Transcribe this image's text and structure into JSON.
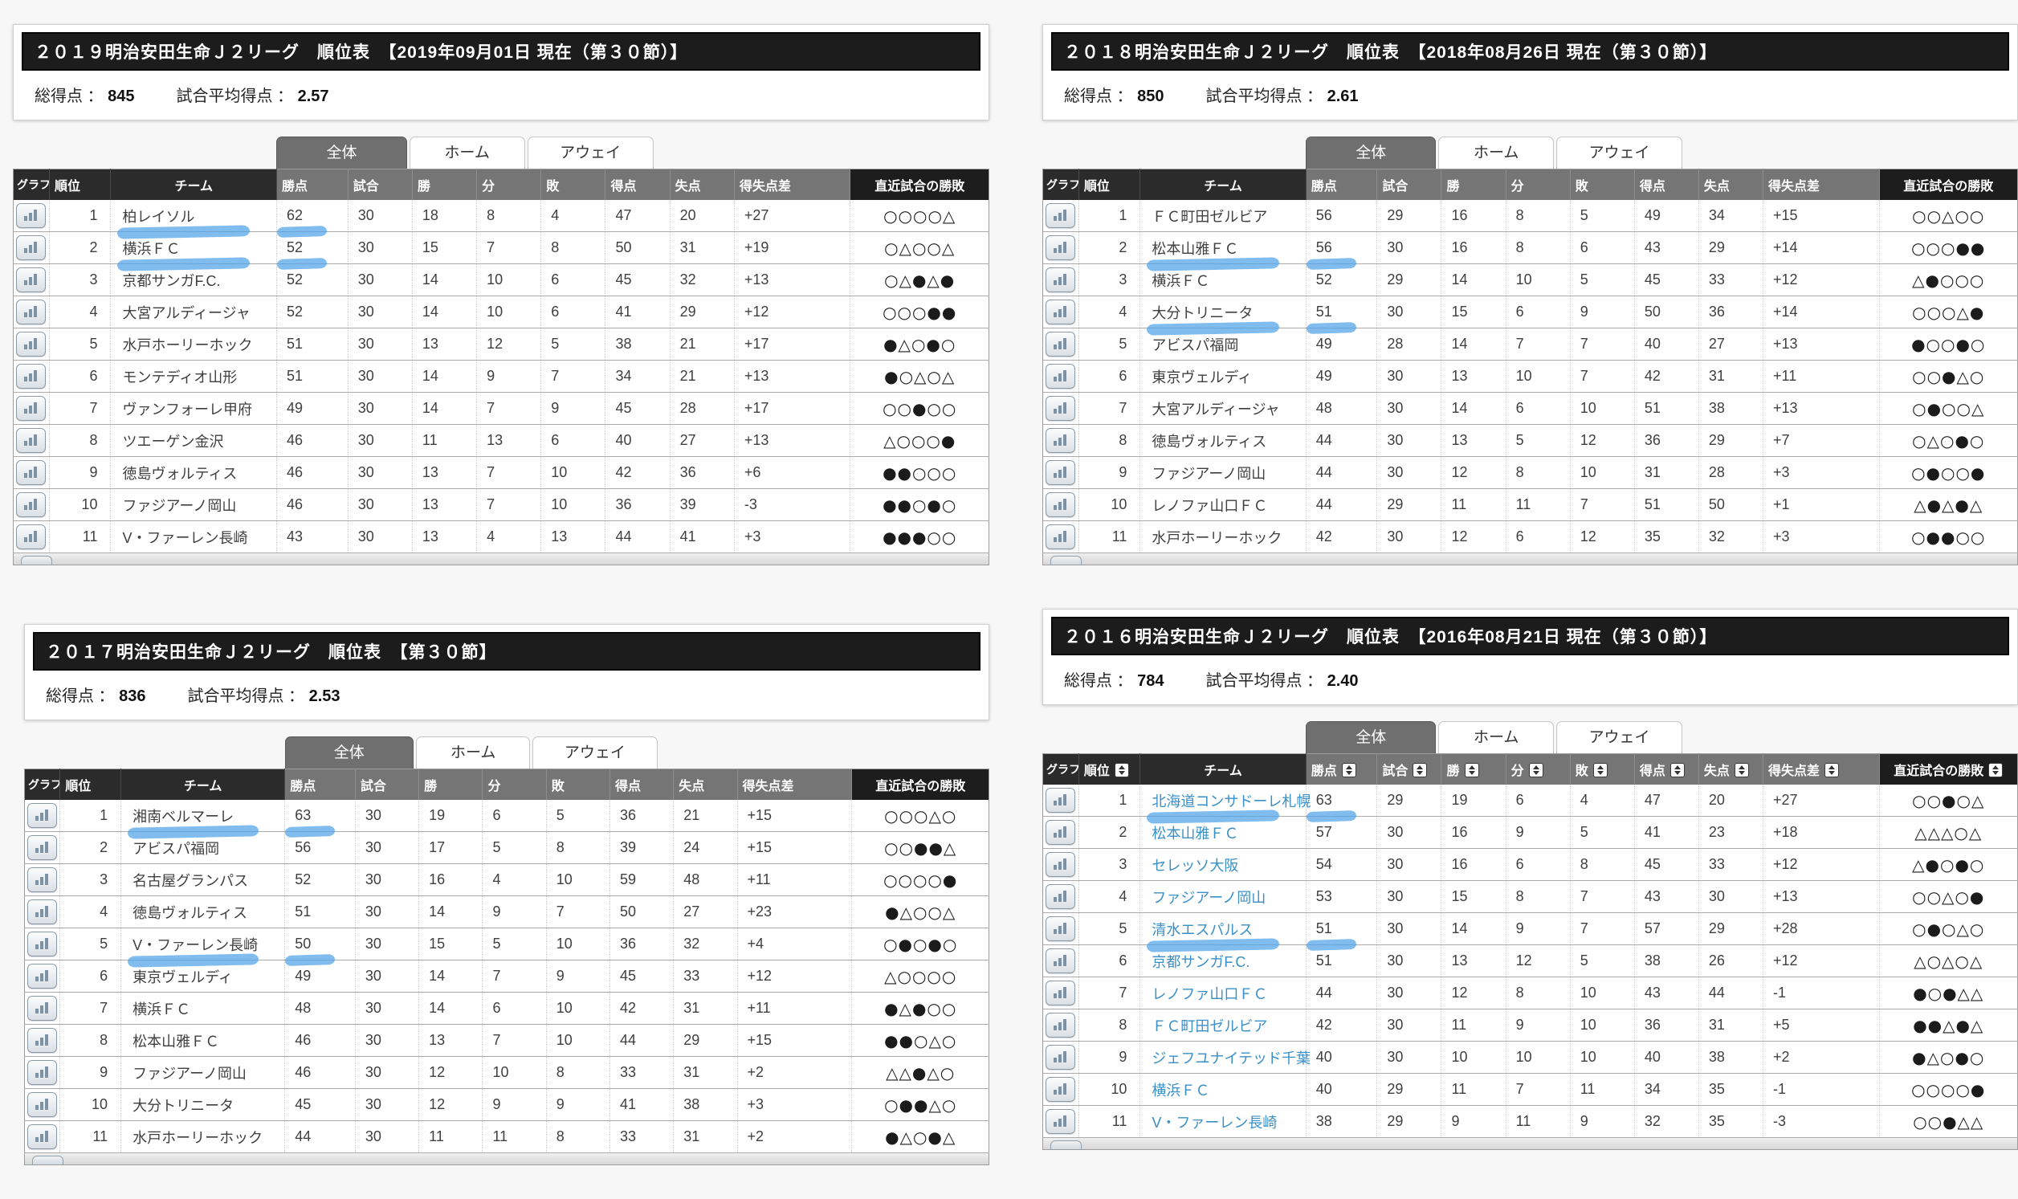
{
  "tabs": {
    "all": "全体",
    "home": "ホーム",
    "away": "アウェイ"
  },
  "columns": [
    "グラフ",
    "順位",
    "チーム",
    "勝点",
    "試合",
    "勝",
    "分",
    "敗",
    "得点",
    "失点",
    "得失点差",
    "直近試合の勝敗"
  ],
  "summary_labels": {
    "total": "総得点",
    "average": "試合平均得点",
    "colon": "："
  },
  "annotation_color": "#4fa3e8",
  "icons": {
    "graph": "bar-chart-icon",
    "sort": "sort-toggle-icon"
  },
  "panels": [
    {
      "id": "2019",
      "title": "２０１９明治安田生命Ｊ２リーグ　順位表　【2019年09月01日 現在（第３０節）】",
      "total_points": "845",
      "average_points": "2.57",
      "team_links": false,
      "sortable": false,
      "rows": [
        {
          "rank": "1",
          "team": "柏レイソル",
          "points": "62",
          "played": "30",
          "win": "18",
          "draw": "8",
          "loss": "4",
          "gf": "47",
          "ga": "20",
          "gd": "+27",
          "recent": "○○○○△",
          "highlight_team": true,
          "highlight_points": true
        },
        {
          "rank": "2",
          "team": "横浜ＦＣ",
          "points": "52",
          "played": "30",
          "win": "15",
          "draw": "7",
          "loss": "8",
          "gf": "50",
          "ga": "31",
          "gd": "+19",
          "recent": "○△○○△",
          "highlight_team": true,
          "highlight_points": true
        },
        {
          "rank": "3",
          "team": "京都サンガF.C.",
          "points": "52",
          "played": "30",
          "win": "14",
          "draw": "10",
          "loss": "6",
          "gf": "45",
          "ga": "32",
          "gd": "+13",
          "recent": "○△●△●"
        },
        {
          "rank": "4",
          "team": "大宮アルディージャ",
          "points": "52",
          "played": "30",
          "win": "14",
          "draw": "10",
          "loss": "6",
          "gf": "41",
          "ga": "29",
          "gd": "+12",
          "recent": "○○○●●"
        },
        {
          "rank": "5",
          "team": "水戸ホーリーホック",
          "points": "51",
          "played": "30",
          "win": "13",
          "draw": "12",
          "loss": "5",
          "gf": "38",
          "ga": "21",
          "gd": "+17",
          "recent": "●△○●○"
        },
        {
          "rank": "6",
          "team": "モンテディオ山形",
          "points": "51",
          "played": "30",
          "win": "14",
          "draw": "9",
          "loss": "7",
          "gf": "34",
          "ga": "21",
          "gd": "+13",
          "recent": "●○△○△"
        },
        {
          "rank": "7",
          "team": "ヴァンフォーレ甲府",
          "points": "49",
          "played": "30",
          "win": "14",
          "draw": "7",
          "loss": "9",
          "gf": "45",
          "ga": "28",
          "gd": "+17",
          "recent": "○○●○○"
        },
        {
          "rank": "8",
          "team": "ツエーゲン金沢",
          "points": "46",
          "played": "30",
          "win": "11",
          "draw": "13",
          "loss": "6",
          "gf": "40",
          "ga": "27",
          "gd": "+13",
          "recent": "△○○○●"
        },
        {
          "rank": "9",
          "team": "徳島ヴォルティス",
          "points": "46",
          "played": "30",
          "win": "13",
          "draw": "7",
          "loss": "10",
          "gf": "42",
          "ga": "36",
          "gd": "+6",
          "recent": "●●○○○"
        },
        {
          "rank": "10",
          "team": "ファジアーノ岡山",
          "points": "46",
          "played": "30",
          "win": "13",
          "draw": "7",
          "loss": "10",
          "gf": "36",
          "ga": "39",
          "gd": "-3",
          "recent": "●●○●○"
        },
        {
          "rank": "11",
          "team": "V・ファーレン長崎",
          "points": "43",
          "played": "30",
          "win": "13",
          "draw": "4",
          "loss": "13",
          "gf": "44",
          "ga": "41",
          "gd": "+3",
          "recent": "●●●○○"
        }
      ]
    },
    {
      "id": "2018",
      "title": "２０１８明治安田生命Ｊ２リーグ　順位表　【2018年08月26日 現在（第３０節）】",
      "total_points": "850",
      "average_points": "2.61",
      "team_links": false,
      "sortable": false,
      "rows": [
        {
          "rank": "1",
          "team": "ＦＣ町田ゼルビア",
          "points": "56",
          "played": "29",
          "win": "16",
          "draw": "8",
          "loss": "5",
          "gf": "49",
          "ga": "34",
          "gd": "+15",
          "recent": "○○△○○"
        },
        {
          "rank": "2",
          "team": "松本山雅ＦＣ",
          "points": "56",
          "played": "30",
          "win": "16",
          "draw": "8",
          "loss": "6",
          "gf": "43",
          "ga": "29",
          "gd": "+14",
          "recent": "○○○●●",
          "highlight_team": true,
          "highlight_points": true
        },
        {
          "rank": "3",
          "team": "横浜ＦＣ",
          "points": "52",
          "played": "29",
          "win": "14",
          "draw": "10",
          "loss": "5",
          "gf": "45",
          "ga": "33",
          "gd": "+12",
          "recent": "△●○○○"
        },
        {
          "rank": "4",
          "team": "大分トリニータ",
          "points": "51",
          "played": "30",
          "win": "15",
          "draw": "6",
          "loss": "9",
          "gf": "50",
          "ga": "36",
          "gd": "+14",
          "recent": "○○○△●",
          "highlight_team": true,
          "highlight_points": true
        },
        {
          "rank": "5",
          "team": "アビスパ福岡",
          "points": "49",
          "played": "28",
          "win": "14",
          "draw": "7",
          "loss": "7",
          "gf": "40",
          "ga": "27",
          "gd": "+13",
          "recent": "●○○●○"
        },
        {
          "rank": "6",
          "team": "東京ヴェルディ",
          "points": "49",
          "played": "30",
          "win": "13",
          "draw": "10",
          "loss": "7",
          "gf": "42",
          "ga": "31",
          "gd": "+11",
          "recent": "○○●△○"
        },
        {
          "rank": "7",
          "team": "大宮アルディージャ",
          "points": "48",
          "played": "30",
          "win": "14",
          "draw": "6",
          "loss": "10",
          "gf": "51",
          "ga": "38",
          "gd": "+13",
          "recent": "○●○○△"
        },
        {
          "rank": "8",
          "team": "徳島ヴォルティス",
          "points": "44",
          "played": "30",
          "win": "13",
          "draw": "5",
          "loss": "12",
          "gf": "36",
          "ga": "29",
          "gd": "+7",
          "recent": "○△○●○"
        },
        {
          "rank": "9",
          "team": "ファジアーノ岡山",
          "points": "44",
          "played": "30",
          "win": "12",
          "draw": "8",
          "loss": "10",
          "gf": "31",
          "ga": "28",
          "gd": "+3",
          "recent": "○●○○●"
        },
        {
          "rank": "10",
          "team": "レノファ山口ＦＣ",
          "points": "44",
          "played": "29",
          "win": "11",
          "draw": "11",
          "loss": "7",
          "gf": "51",
          "ga": "50",
          "gd": "+1",
          "recent": "△●△●△"
        },
        {
          "rank": "11",
          "team": "水戸ホーリーホック",
          "points": "42",
          "played": "30",
          "win": "12",
          "draw": "6",
          "loss": "12",
          "gf": "35",
          "ga": "32",
          "gd": "+3",
          "recent": "○●●○○"
        }
      ]
    },
    {
      "id": "2017",
      "title": "２０１７明治安田生命Ｊ２リーグ　順位表　【第３０節】",
      "total_points": "836",
      "average_points": "2.53",
      "team_links": false,
      "sortable": false,
      "rows": [
        {
          "rank": "1",
          "team": "湘南ベルマーレ",
          "points": "63",
          "played": "30",
          "win": "19",
          "draw": "6",
          "loss": "5",
          "gf": "36",
          "ga": "21",
          "gd": "+15",
          "recent": "○○○△○",
          "highlight_team": true,
          "highlight_points": true
        },
        {
          "rank": "2",
          "team": "アビスパ福岡",
          "points": "56",
          "played": "30",
          "win": "17",
          "draw": "5",
          "loss": "8",
          "gf": "39",
          "ga": "24",
          "gd": "+15",
          "recent": "○○●●△"
        },
        {
          "rank": "3",
          "team": "名古屋グランパス",
          "points": "52",
          "played": "30",
          "win": "16",
          "draw": "4",
          "loss": "10",
          "gf": "59",
          "ga": "48",
          "gd": "+11",
          "recent": "○○○○●"
        },
        {
          "rank": "4",
          "team": "徳島ヴォルティス",
          "points": "51",
          "played": "30",
          "win": "14",
          "draw": "9",
          "loss": "7",
          "gf": "50",
          "ga": "27",
          "gd": "+23",
          "recent": "●△○○△"
        },
        {
          "rank": "5",
          "team": "V・ファーレン長崎",
          "points": "50",
          "played": "30",
          "win": "15",
          "draw": "5",
          "loss": "10",
          "gf": "36",
          "ga": "32",
          "gd": "+4",
          "recent": "○●○●○",
          "highlight_team": true,
          "highlight_points": true
        },
        {
          "rank": "6",
          "team": "東京ヴェルディ",
          "points": "49",
          "played": "30",
          "win": "14",
          "draw": "7",
          "loss": "9",
          "gf": "45",
          "ga": "33",
          "gd": "+12",
          "recent": "△○○○○"
        },
        {
          "rank": "7",
          "team": "横浜ＦＣ",
          "points": "48",
          "played": "30",
          "win": "14",
          "draw": "6",
          "loss": "10",
          "gf": "42",
          "ga": "31",
          "gd": "+11",
          "recent": "●△●○○"
        },
        {
          "rank": "8",
          "team": "松本山雅ＦＣ",
          "points": "46",
          "played": "30",
          "win": "13",
          "draw": "7",
          "loss": "10",
          "gf": "44",
          "ga": "29",
          "gd": "+15",
          "recent": "●●○△○"
        },
        {
          "rank": "9",
          "team": "ファジアーノ岡山",
          "points": "46",
          "played": "30",
          "win": "12",
          "draw": "10",
          "loss": "8",
          "gf": "33",
          "ga": "31",
          "gd": "+2",
          "recent": "△△●△○"
        },
        {
          "rank": "10",
          "team": "大分トリニータ",
          "points": "45",
          "played": "30",
          "win": "12",
          "draw": "9",
          "loss": "9",
          "gf": "41",
          "ga": "38",
          "gd": "+3",
          "recent": "○●●△○"
        },
        {
          "rank": "11",
          "team": "水戸ホーリーホック",
          "points": "44",
          "played": "30",
          "win": "11",
          "draw": "11",
          "loss": "8",
          "gf": "33",
          "ga": "31",
          "gd": "+2",
          "recent": "●△○●△"
        }
      ]
    },
    {
      "id": "2016",
      "title": "２０１６明治安田生命Ｊ２リーグ　順位表　【2016年08月21日 現在（第３０節）】",
      "total_points": "784",
      "average_points": "2.40",
      "team_links": true,
      "sortable": true,
      "rows": [
        {
          "rank": "1",
          "team": "北海道コンサドーレ札幌",
          "points": "63",
          "played": "29",
          "win": "19",
          "draw": "6",
          "loss": "4",
          "gf": "47",
          "ga": "20",
          "gd": "+27",
          "recent": "○○●○△",
          "highlight_team": true,
          "highlight_points": true
        },
        {
          "rank": "2",
          "team": "松本山雅ＦＣ",
          "points": "57",
          "played": "30",
          "win": "16",
          "draw": "9",
          "loss": "5",
          "gf": "41",
          "ga": "23",
          "gd": "+18",
          "recent": "△△△○△"
        },
        {
          "rank": "3",
          "team": "セレッソ大阪",
          "points": "54",
          "played": "30",
          "win": "16",
          "draw": "6",
          "loss": "8",
          "gf": "45",
          "ga": "33",
          "gd": "+12",
          "recent": "△●○●○"
        },
        {
          "rank": "4",
          "team": "ファジアーノ岡山",
          "points": "53",
          "played": "30",
          "win": "15",
          "draw": "8",
          "loss": "7",
          "gf": "43",
          "ga": "30",
          "gd": "+13",
          "recent": "○○△○●"
        },
        {
          "rank": "5",
          "team": "清水エスパルス",
          "points": "51",
          "played": "30",
          "win": "14",
          "draw": "9",
          "loss": "7",
          "gf": "57",
          "ga": "29",
          "gd": "+28",
          "recent": "○●○△○",
          "highlight_team": true,
          "highlight_points": true
        },
        {
          "rank": "6",
          "team": "京都サンガF.C.",
          "points": "51",
          "played": "30",
          "win": "13",
          "draw": "12",
          "loss": "5",
          "gf": "38",
          "ga": "26",
          "gd": "+12",
          "recent": "△○△○△"
        },
        {
          "rank": "7",
          "team": "レノファ山口ＦＣ",
          "points": "44",
          "played": "30",
          "win": "12",
          "draw": "8",
          "loss": "10",
          "gf": "43",
          "ga": "44",
          "gd": "-1",
          "recent": "●○●△△"
        },
        {
          "rank": "8",
          "team": "ＦＣ町田ゼルビア",
          "points": "42",
          "played": "30",
          "win": "11",
          "draw": "9",
          "loss": "10",
          "gf": "36",
          "ga": "31",
          "gd": "+5",
          "recent": "●●△●△"
        },
        {
          "rank": "9",
          "team": "ジェフユナイテッド千葉",
          "points": "40",
          "played": "30",
          "win": "10",
          "draw": "10",
          "loss": "10",
          "gf": "40",
          "ga": "38",
          "gd": "+2",
          "recent": "●△○●○"
        },
        {
          "rank": "10",
          "team": "横浜ＦＣ",
          "points": "40",
          "played": "29",
          "win": "11",
          "draw": "7",
          "loss": "11",
          "gf": "34",
          "ga": "35",
          "gd": "-1",
          "recent": "○○○○●"
        },
        {
          "rank": "11",
          "team": "V・ファーレン長崎",
          "points": "38",
          "played": "29",
          "win": "9",
          "draw": "11",
          "loss": "9",
          "gf": "32",
          "ga": "35",
          "gd": "-3",
          "recent": "○○●△△"
        }
      ]
    }
  ]
}
